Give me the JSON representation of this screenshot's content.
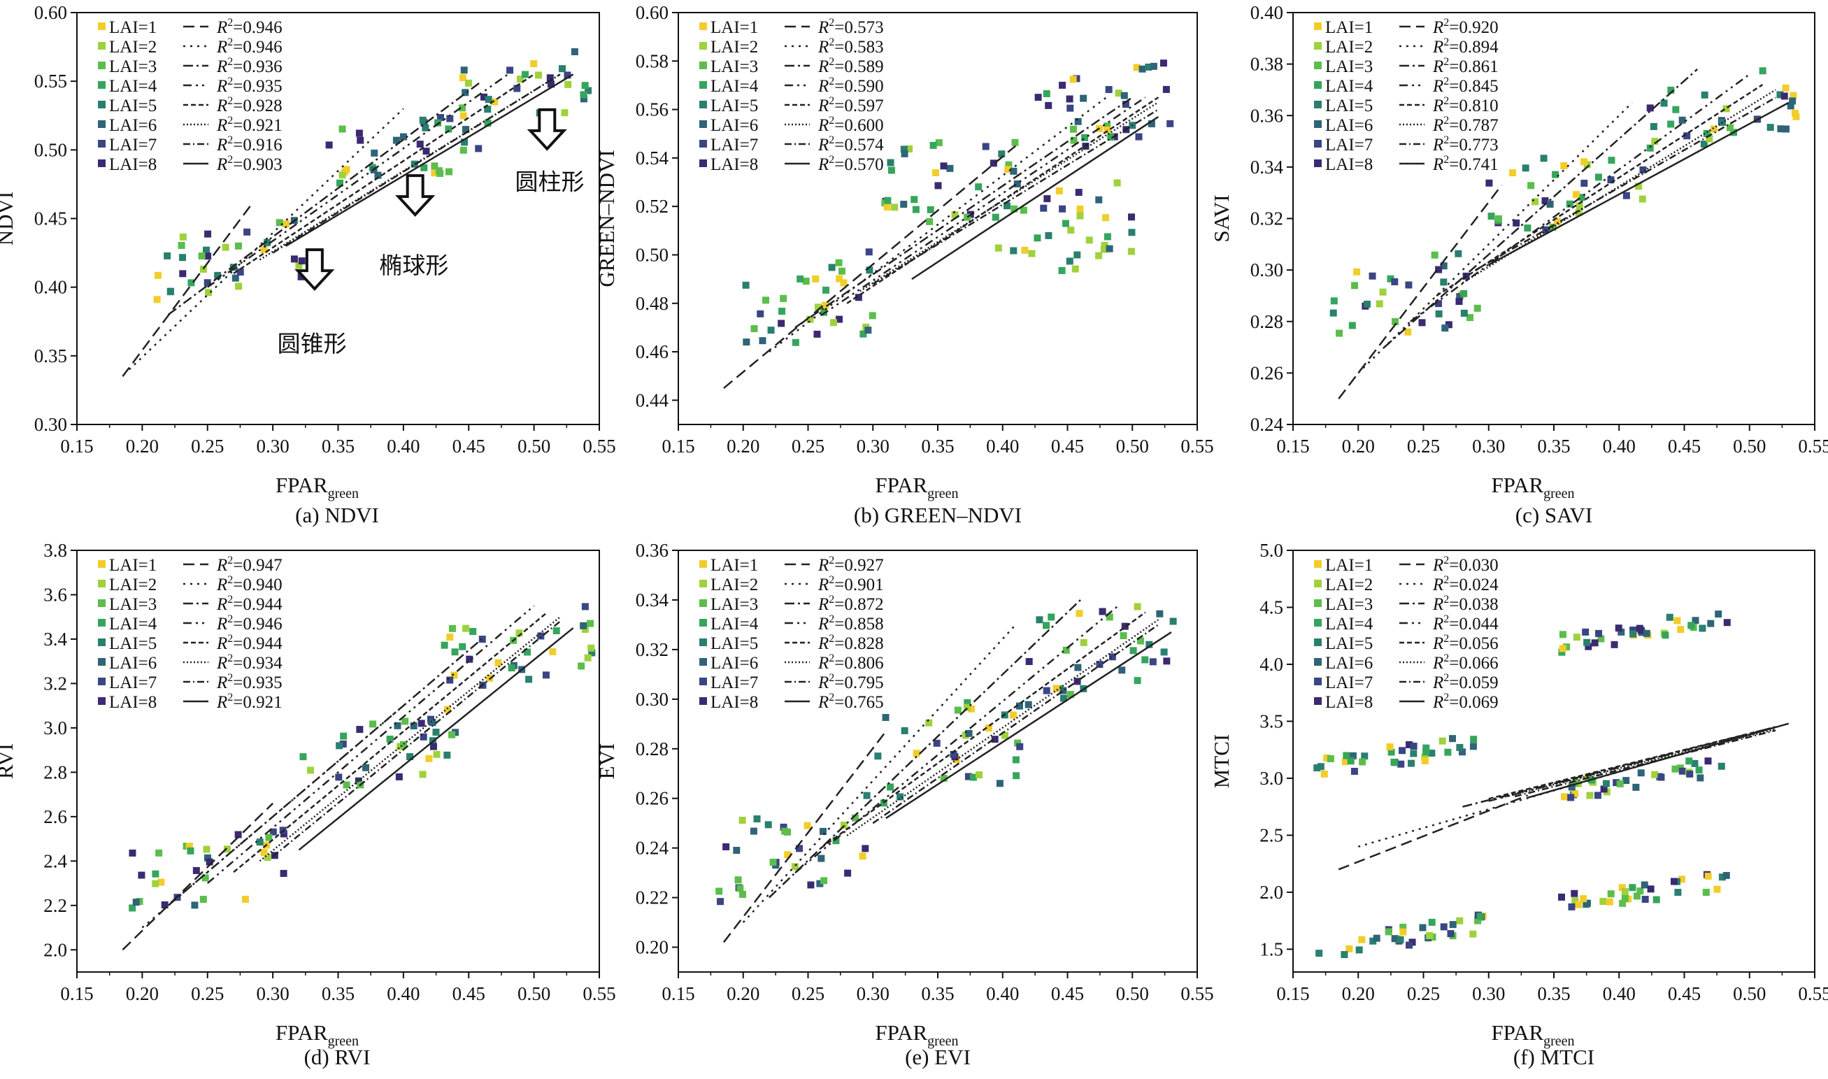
{
  "colors": {
    "lai": [
      "#f2cd2a",
      "#9fd13c",
      "#5cbd4c",
      "#36a55c",
      "#2a7f6e",
      "#2f6478",
      "#3a4584",
      "#3b2a72"
    ],
    "axis": "#111111"
  },
  "legend_labels": [
    "LAI=1",
    "LAI=2",
    "LAI=3",
    "LAI=4",
    "LAI=5",
    "LAI=6",
    "LAI=7",
    "LAI=8"
  ],
  "chart_data": [
    {
      "id": "a",
      "type": "scatter",
      "caption": "(a) NDVI",
      "xlabel_main": "FPAR",
      "xlabel_sub": "green",
      "ylabel": "NDVI",
      "xlim": [
        0.15,
        0.55
      ],
      "ylim": [
        0.3,
        0.6
      ],
      "xticks": [
        "0.15",
        "0.20",
        "0.25",
        "0.30",
        "0.35",
        "0.40",
        "0.45",
        "0.50",
        "0.55"
      ],
      "yticks": [
        "0.30",
        "0.35",
        "0.40",
        "0.45",
        "0.50",
        "0.55",
        "0.60"
      ],
      "r2": [
        "0.946",
        "0.946",
        "0.936",
        "0.935",
        "0.928",
        "0.921",
        "0.916",
        "0.903"
      ],
      "annotations": [
        {
          "text": "圆锥形",
          "x": 0.33,
          "y": 0.353
        },
        {
          "text": "椭球形",
          "x": 0.408,
          "y": 0.41
        },
        {
          "text": "圆柱形",
          "x": 0.512,
          "y": 0.471
        }
      ],
      "arrows": [
        [
          0.332,
          0.412
        ],
        [
          0.409,
          0.466
        ],
        [
          0.51,
          0.514
        ]
      ],
      "cluster_centers": [
        [
          0.27,
          0.42
        ],
        [
          0.4,
          0.5
        ],
        [
          0.5,
          0.545
        ]
      ],
      "cluster_spread": [
        0.1,
        0.045
      ],
      "fits": [
        {
          "x": [
            0.185,
            0.285
          ],
          "y": [
            0.335,
            0.462
          ]
        },
        {
          "x": [
            0.19,
            0.4
          ],
          "y": [
            0.34,
            0.53
          ]
        },
        {
          "x": [
            0.22,
            0.46
          ],
          "y": [
            0.38,
            0.55
          ]
        },
        {
          "x": [
            0.25,
            0.48
          ],
          "y": [
            0.4,
            0.555
          ]
        },
        {
          "x": [
            0.27,
            0.5
          ],
          "y": [
            0.41,
            0.555
          ]
        },
        {
          "x": [
            0.29,
            0.52
          ],
          "y": [
            0.42,
            0.555
          ]
        },
        {
          "x": [
            0.3,
            0.52
          ],
          "y": [
            0.425,
            0.555
          ]
        },
        {
          "x": [
            0.31,
            0.53
          ],
          "y": [
            0.43,
            0.555
          ]
        }
      ]
    },
    {
      "id": "b",
      "type": "scatter",
      "caption": "(b) GREEN–NDVI",
      "xlabel_main": "FPAR",
      "xlabel_sub": "green",
      "ylabel": "GREEN–NDVI",
      "xlim": [
        0.15,
        0.55
      ],
      "ylim": [
        0.43,
        0.6
      ],
      "xticks": [
        "0.15",
        "0.20",
        "0.25",
        "0.30",
        "0.35",
        "0.40",
        "0.45",
        "0.50",
        "0.55"
      ],
      "yticks": [
        "0.44",
        "0.46",
        "0.48",
        "0.50",
        "0.52",
        "0.54",
        "0.56",
        "0.58",
        "0.60"
      ],
      "r2": [
        "0.573",
        "0.583",
        "0.589",
        "0.590",
        "0.597",
        "0.600",
        "0.574",
        "0.570"
      ],
      "annotations": [],
      "arrows": [],
      "cluster_centers": [
        [
          0.25,
          0.48
        ],
        [
          0.36,
          0.53
        ],
        [
          0.48,
          0.56
        ],
        [
          0.45,
          0.51
        ]
      ],
      "cluster_spread": [
        0.09,
        0.035
      ],
      "fits": [
        {
          "x": [
            0.185,
            0.41
          ],
          "y": [
            0.445,
            0.545
          ]
        },
        {
          "x": [
            0.22,
            0.48
          ],
          "y": [
            0.46,
            0.565
          ]
        },
        {
          "x": [
            0.24,
            0.5
          ],
          "y": [
            0.47,
            0.565
          ]
        },
        {
          "x": [
            0.26,
            0.51
          ],
          "y": [
            0.475,
            0.565
          ]
        },
        {
          "x": [
            0.28,
            0.52
          ],
          "y": [
            0.48,
            0.565
          ]
        },
        {
          "x": [
            0.29,
            0.52
          ],
          "y": [
            0.485,
            0.563
          ]
        },
        {
          "x": [
            0.3,
            0.52
          ],
          "y": [
            0.488,
            0.56
          ]
        },
        {
          "x": [
            0.33,
            0.52
          ],
          "y": [
            0.49,
            0.557
          ]
        }
      ]
    },
    {
      "id": "c",
      "type": "scatter",
      "caption": "(c) SAVI",
      "xlabel_main": "FPAR",
      "xlabel_sub": "green",
      "ylabel": "SAVI",
      "xlim": [
        0.15,
        0.55
      ],
      "ylim": [
        0.24,
        0.4
      ],
      "xticks": [
        "0.15",
        "0.20",
        "0.25",
        "0.30",
        "0.35",
        "0.40",
        "0.45",
        "0.50",
        "0.55"
      ],
      "yticks": [
        "0.24",
        "0.26",
        "0.28",
        "0.30",
        "0.32",
        "0.34",
        "0.36",
        "0.38",
        "0.40"
      ],
      "r2": [
        "0.920",
        "0.894",
        "0.861",
        "0.845",
        "0.810",
        "0.787",
        "0.773",
        "0.741"
      ],
      "annotations": [],
      "arrows": [],
      "cluster_centers": [
        [
          0.24,
          0.29
        ],
        [
          0.36,
          0.33
        ],
        [
          0.48,
          0.36
        ]
      ],
      "cluster_spread": [
        0.1,
        0.03
      ],
      "fits": [
        {
          "x": [
            0.185,
            0.31
          ],
          "y": [
            0.25,
            0.333
          ]
        },
        {
          "x": [
            0.2,
            0.41
          ],
          "y": [
            0.26,
            0.365
          ]
        },
        {
          "x": [
            0.22,
            0.46
          ],
          "y": [
            0.27,
            0.378
          ]
        },
        {
          "x": [
            0.24,
            0.5
          ],
          "y": [
            0.28,
            0.376
          ]
        },
        {
          "x": [
            0.26,
            0.51
          ],
          "y": [
            0.29,
            0.372
          ]
        },
        {
          "x": [
            0.28,
            0.52
          ],
          "y": [
            0.295,
            0.37
          ]
        },
        {
          "x": [
            0.29,
            0.52
          ],
          "y": [
            0.3,
            0.367
          ]
        },
        {
          "x": [
            0.3,
            0.53
          ],
          "y": [
            0.302,
            0.365
          ]
        }
      ]
    },
    {
      "id": "d",
      "type": "scatter",
      "caption": "(d) RVI",
      "xlabel_main": "FPAR",
      "xlabel_sub": "green",
      "ylabel": "RVI",
      "xlim": [
        0.15,
        0.55
      ],
      "ylim": [
        1.9,
        3.8
      ],
      "xticks": [
        "0.15",
        "0.20",
        "0.25",
        "0.30",
        "0.35",
        "0.40",
        "0.45",
        "0.50",
        "0.55"
      ],
      "yticks": [
        "2.0",
        "2.2",
        "2.4",
        "2.6",
        "2.8",
        "3.0",
        "3.2",
        "3.4",
        "3.6",
        "3.8"
      ],
      "r2": [
        "0.947",
        "0.940",
        "0.944",
        "0.946",
        "0.944",
        "0.934",
        "0.935",
        "0.921"
      ],
      "annotations": [],
      "arrows": [],
      "cluster_centers": [
        [
          0.25,
          2.35
        ],
        [
          0.38,
          2.9
        ],
        [
          0.49,
          3.35
        ]
      ],
      "cluster_spread": [
        0.1,
        0.3
      ],
      "fits": [
        {
          "x": [
            0.185,
            0.3
          ],
          "y": [
            2.0,
            2.66
          ]
        },
        {
          "x": [
            0.2,
            0.4
          ],
          "y": [
            2.1,
            3.1
          ]
        },
        {
          "x": [
            0.22,
            0.46
          ],
          "y": [
            2.2,
            3.4
          ]
        },
        {
          "x": [
            0.25,
            0.5
          ],
          "y": [
            2.3,
            3.55
          ]
        },
        {
          "x": [
            0.27,
            0.51
          ],
          "y": [
            2.35,
            3.52
          ]
        },
        {
          "x": [
            0.29,
            0.52
          ],
          "y": [
            2.4,
            3.5
          ]
        },
        {
          "x": [
            0.3,
            0.52
          ],
          "y": [
            2.42,
            3.48
          ]
        },
        {
          "x": [
            0.32,
            0.53
          ],
          "y": [
            2.45,
            3.45
          ]
        }
      ]
    },
    {
      "id": "e",
      "type": "scatter",
      "caption": "(e) EVI",
      "xlabel_main": "FPAR",
      "xlabel_sub": "green",
      "ylabel": "EVI",
      "xlim": [
        0.15,
        0.55
      ],
      "ylim": [
        0.19,
        0.36
      ],
      "xticks": [
        "0.15",
        "0.20",
        "0.25",
        "0.30",
        "0.35",
        "0.40",
        "0.45",
        "0.50",
        "0.55"
      ],
      "yticks": [
        "0.20",
        "0.22",
        "0.24",
        "0.26",
        "0.28",
        "0.30",
        "0.32",
        "0.34",
        "0.36"
      ],
      "r2": [
        "0.927",
        "0.901",
        "0.872",
        "0.858",
        "0.828",
        "0.806",
        "0.795",
        "0.765"
      ],
      "annotations": [],
      "arrows": [],
      "cluster_centers": [
        [
          0.24,
          0.24
        ],
        [
          0.36,
          0.28
        ],
        [
          0.48,
          0.32
        ]
      ],
      "cluster_spread": [
        0.1,
        0.035
      ],
      "fits": [
        {
          "x": [
            0.185,
            0.31
          ],
          "y": [
            0.202,
            0.287
          ]
        },
        {
          "x": [
            0.2,
            0.41
          ],
          "y": [
            0.21,
            0.33
          ]
        },
        {
          "x": [
            0.22,
            0.46
          ],
          "y": [
            0.22,
            0.34
          ]
        },
        {
          "x": [
            0.24,
            0.49
          ],
          "y": [
            0.23,
            0.338
          ]
        },
        {
          "x": [
            0.26,
            0.51
          ],
          "y": [
            0.24,
            0.335
          ]
        },
        {
          "x": [
            0.28,
            0.52
          ],
          "y": [
            0.245,
            0.332
          ]
        },
        {
          "x": [
            0.3,
            0.52
          ],
          "y": [
            0.25,
            0.33
          ]
        },
        {
          "x": [
            0.31,
            0.53
          ],
          "y": [
            0.252,
            0.327
          ]
        }
      ]
    },
    {
      "id": "f",
      "type": "scatter",
      "caption": "(f) MTCI",
      "xlabel_main": "FPAR",
      "xlabel_sub": "green",
      "ylabel": "MTCI",
      "xlim": [
        0.15,
        0.55
      ],
      "ylim": [
        1.3,
        5.0
      ],
      "xticks": [
        "0.15",
        "0.20",
        "0.25",
        "0.30",
        "0.35",
        "0.40",
        "0.45",
        "0.50",
        "0.55"
      ],
      "yticks": [
        "1.5",
        "2.0",
        "2.5",
        "3.0",
        "3.5",
        "4.0",
        "4.5",
        "5.0"
      ],
      "r2": [
        "0.030",
        "0.024",
        "0.038",
        "0.044",
        "0.056",
        "0.066",
        "0.059",
        "0.069"
      ],
      "annotations": [],
      "arrows": [],
      "cluster_centers": [
        [
          0.23,
          3.2
        ],
        [
          0.23,
          1.6
        ],
        [
          0.42,
          4.3
        ],
        [
          0.42,
          3.0
        ],
        [
          0.42,
          2.0
        ]
      ],
      "cluster_spread": [
        0.11,
        0.18
      ],
      "fits": [
        {
          "x": [
            0.185,
            0.33
          ],
          "y": [
            2.2,
            2.85
          ]
        },
        {
          "x": [
            0.2,
            0.52
          ],
          "y": [
            2.4,
            3.45
          ]
        },
        {
          "x": [
            0.28,
            0.52
          ],
          "y": [
            2.75,
            3.45
          ]
        },
        {
          "x": [
            0.3,
            0.52
          ],
          "y": [
            2.8,
            3.45
          ]
        },
        {
          "x": [
            0.3,
            0.52
          ],
          "y": [
            2.82,
            3.45
          ]
        },
        {
          "x": [
            0.31,
            0.52
          ],
          "y": [
            2.83,
            3.43
          ]
        },
        {
          "x": [
            0.32,
            0.52
          ],
          "y": [
            2.84,
            3.42
          ]
        },
        {
          "x": [
            0.33,
            0.53
          ],
          "y": [
            2.83,
            3.48
          ]
        }
      ]
    }
  ]
}
